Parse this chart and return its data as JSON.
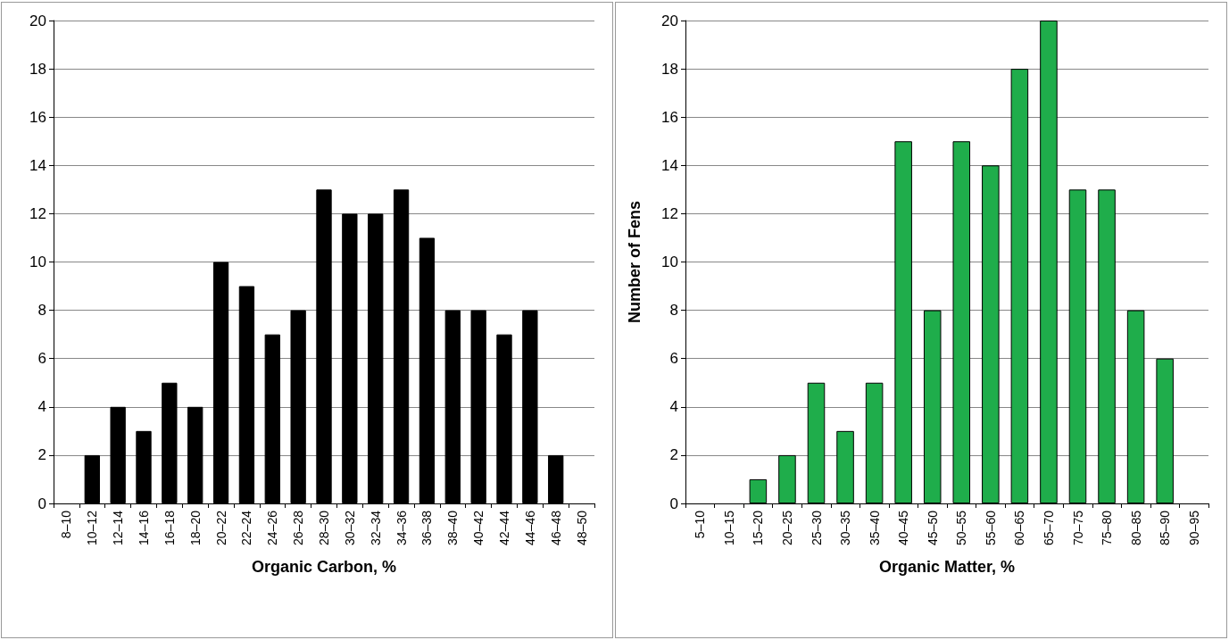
{
  "chart_data": [
    {
      "type": "bar",
      "xlabel": "Organic Carbon, %",
      "categories": [
        "8–10",
        "10–12",
        "12–14",
        "14–16",
        "16–18",
        "18–20",
        "20–22",
        "22–24",
        "24–26",
        "26–28",
        "28–30",
        "30–32",
        "32–34",
        "34–36",
        "36–38",
        "38–40",
        "40–42",
        "42–44",
        "44–46",
        "46–48",
        "48–50"
      ],
      "series": [
        {
          "color": "#000000",
          "values": [
            0,
            2,
            4,
            3,
            5,
            4,
            10,
            9,
            7,
            8,
            13,
            12,
            12,
            13,
            11,
            8,
            8,
            7,
            8,
            2,
            0
          ]
        }
      ],
      "ylim": [
        0,
        20
      ],
      "yticks": [
        0,
        2,
        4,
        6,
        8,
        10,
        12,
        14,
        16,
        18,
        20
      ],
      "grid": "y"
    },
    {
      "type": "bar",
      "xlabel": "Organic Matter, %",
      "ylabel": "Number of Fens",
      "categories": [
        "5–10",
        "10–15",
        "15–20",
        "20–25",
        "25–30",
        "30–35",
        "35–40",
        "40–45",
        "45–50",
        "50–55",
        "55–60",
        "60–65",
        "65–70",
        "70–75",
        "75–80",
        "80–85",
        "85–90",
        "90–95"
      ],
      "series": [
        {
          "color": "#1fad4b",
          "values": [
            0,
            0,
            1,
            2,
            5,
            3,
            5,
            15,
            8,
            15,
            14,
            18,
            20,
            13,
            13,
            8,
            6,
            0
          ]
        }
      ],
      "ylim": [
        0,
        20
      ],
      "yticks": [
        0,
        2,
        4,
        6,
        8,
        10,
        12,
        14,
        16,
        18,
        20
      ],
      "grid": "y"
    }
  ]
}
